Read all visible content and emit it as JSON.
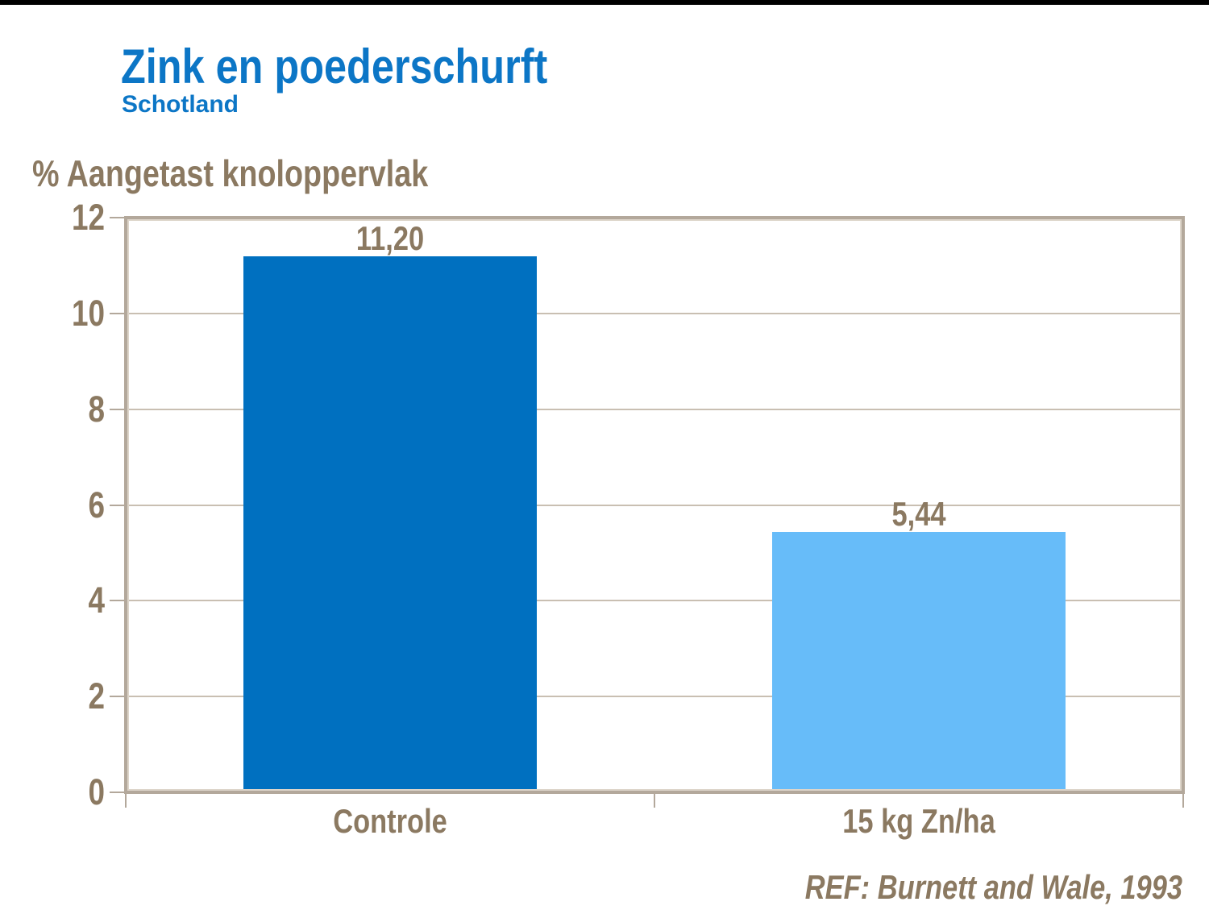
{
  "title": "Zink en poederschurft",
  "subtitle": "Schotland",
  "reference": "REF: Burnett and Wale, 1993",
  "colors": {
    "title_blue": "#0c76c6",
    "text_brown": "#8b7961",
    "axis_tan": "#b3a89b",
    "gridline": "#c9bfb2",
    "bar_dark_blue": "#0070c0",
    "bar_light_blue": "#67bcf9",
    "top_strip": "#000000"
  },
  "chart_data": {
    "type": "bar",
    "categories": [
      "Controle",
      "15 kg Zn/ha"
    ],
    "values": [
      11.2,
      5.44
    ],
    "value_labels": [
      "11,20",
      "5,44"
    ],
    "bar_colors": [
      "#0070c0",
      "#67bcf9"
    ],
    "title": "Zink en poederschurft",
    "subtitle": "Schotland",
    "xlabel": "",
    "ylabel": "% Aangetast knoloppervlak",
    "ylim": [
      0,
      12
    ],
    "yticks": [
      0,
      2,
      4,
      6,
      8,
      10,
      12
    ],
    "grid": true,
    "legend": false
  }
}
